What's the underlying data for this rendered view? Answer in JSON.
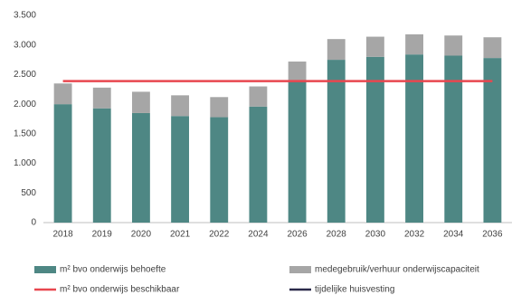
{
  "chart_data": {
    "type": "bar",
    "stacked": true,
    "categories": [
      "2018",
      "2019",
      "2020",
      "2021",
      "2022",
      "2024",
      "2026",
      "2028",
      "2030",
      "2032",
      "2034",
      "2036"
    ],
    "series": [
      {
        "name": "m² bvo onderwijs behoefte",
        "type": "bar",
        "color": "#4e8784",
        "values": [
          2000,
          1930,
          1850,
          1800,
          1780,
          1960,
          2390,
          2750,
          2800,
          2840,
          2820,
          2780
        ]
      },
      {
        "name": "medegebruik/verhuur onderwijscapaciteit",
        "type": "bar",
        "color": "#a6a6a6",
        "values": [
          350,
          350,
          360,
          350,
          340,
          340,
          330,
          350,
          340,
          340,
          340,
          350
        ]
      },
      {
        "name": "m² bvo onderwijs beschikbaar",
        "type": "line",
        "color": "#e8474f",
        "values": [
          2390,
          2390,
          2390,
          2390,
          2390,
          2390,
          2390,
          2390,
          2390,
          2390,
          2390,
          2390
        ]
      },
      {
        "name": "tijdelijke huisvesting",
        "type": "line",
        "color": "#2b2a4a",
        "values": [
          null,
          null,
          null,
          null,
          null,
          null,
          null,
          null,
          null,
          null,
          null,
          null
        ]
      }
    ],
    "ylim": [
      0,
      3500
    ],
    "yticks": [
      0,
      500,
      {
        "value": 1000,
        "label": "1.000"
      },
      {
        "value": 1500,
        "label": "1.500"
      },
      {
        "value": 2000,
        "label": "2.000"
      },
      {
        "value": 2500,
        "label": "2.500"
      },
      {
        "value": 3000,
        "label": "3.000"
      },
      {
        "value": 3500,
        "label": "3.500"
      }
    ],
    "grid": false,
    "legend": "bottom"
  }
}
